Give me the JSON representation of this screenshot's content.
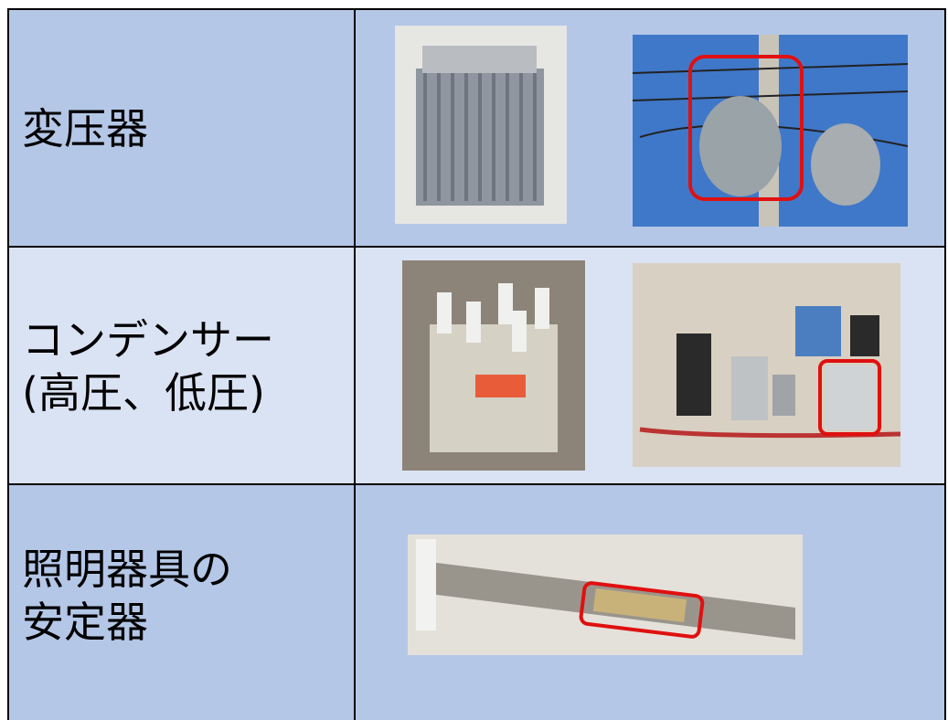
{
  "table": {
    "rows": [
      {
        "label": [
          "変压器"
        ]
      },
      {
        "label": [
          "コンデンサー",
          "(高圧、低圧)"
        ]
      },
      {
        "label": [
          "照明器具の",
          "安定器"
        ]
      }
    ]
  }
}
